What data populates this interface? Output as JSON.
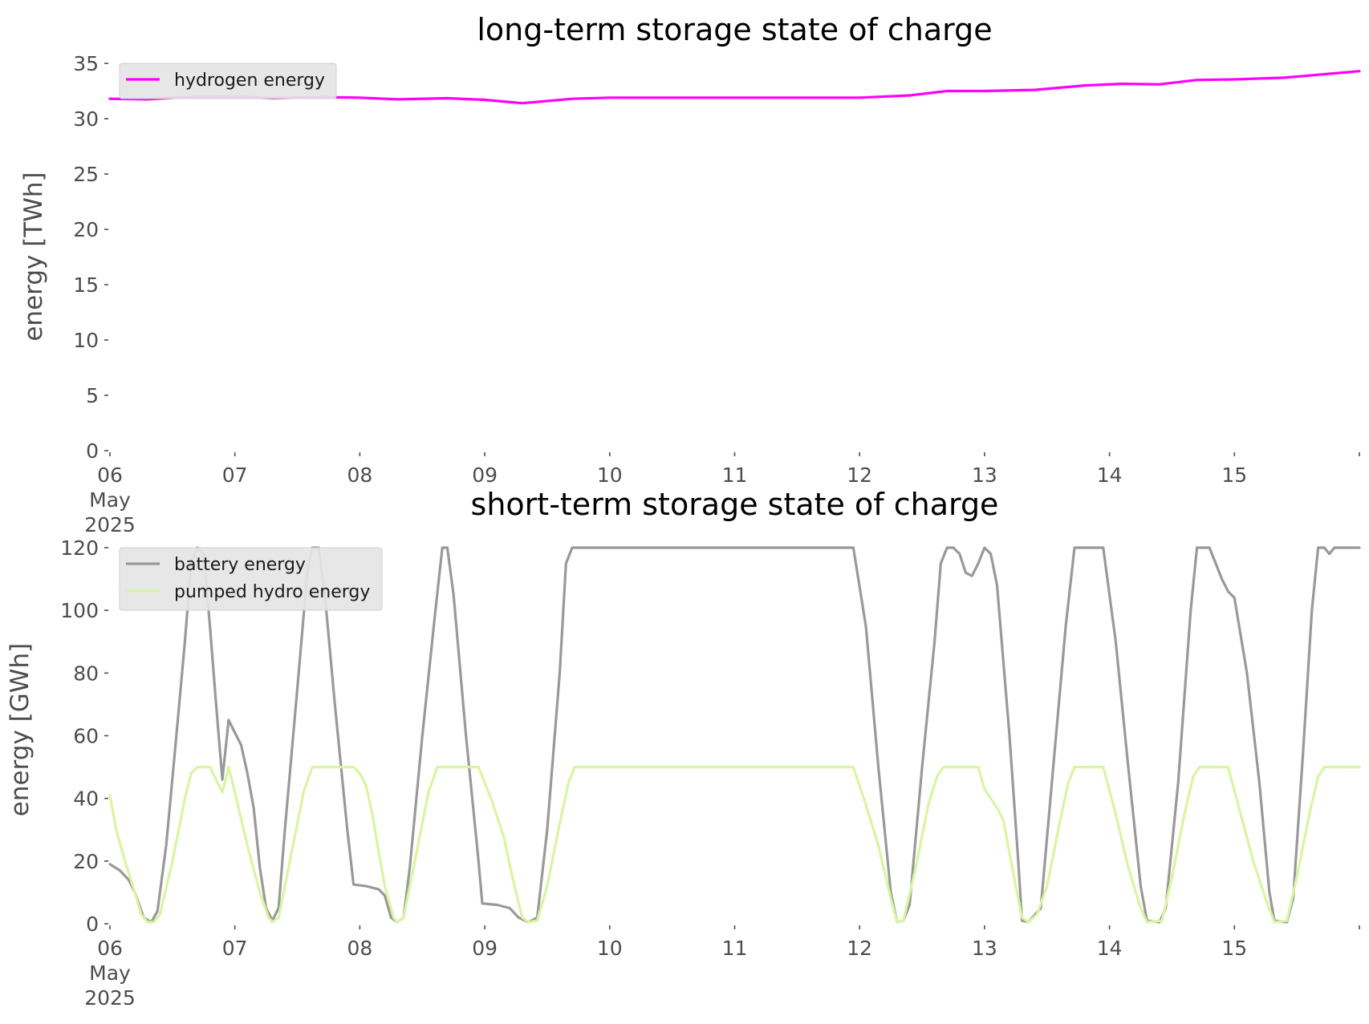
{
  "chart_data": [
    {
      "type": "line",
      "title": "long-term storage state of charge",
      "ylabel": "energy [TWh]",
      "xlabel": "",
      "ylim": [
        0,
        35
      ],
      "yticks": [
        0,
        5,
        10,
        15,
        20,
        25,
        30,
        35
      ],
      "xlim": [
        0,
        10
      ],
      "xticks": [
        {
          "v": 0,
          "lines": [
            "06",
            "May",
            "2025"
          ]
        },
        {
          "v": 1,
          "lines": [
            "07"
          ]
        },
        {
          "v": 2,
          "lines": [
            "08"
          ]
        },
        {
          "v": 3,
          "lines": [
            "09"
          ]
        },
        {
          "v": 4,
          "lines": [
            "10"
          ]
        },
        {
          "v": 5,
          "lines": [
            "11"
          ]
        },
        {
          "v": 6,
          "lines": [
            "12"
          ]
        },
        {
          "v": 7,
          "lines": [
            "13"
          ]
        },
        {
          "v": 8,
          "lines": [
            "14"
          ]
        },
        {
          "v": 9,
          "lines": [
            "15"
          ]
        }
      ],
      "grid": false,
      "legend": "upper left",
      "series": [
        {
          "name": "hydrogen energy",
          "color": "#ff00ff",
          "points": [
            [
              0,
              31.8
            ],
            [
              0.3,
              31.75
            ],
            [
              0.6,
              31.95
            ],
            [
              1,
              32.0
            ],
            [
              1.3,
              31.85
            ],
            [
              1.7,
              31.95
            ],
            [
              2,
              31.9
            ],
            [
              2.3,
              31.75
            ],
            [
              2.7,
              31.85
            ],
            [
              3,
              31.7
            ],
            [
              3.3,
              31.4
            ],
            [
              3.7,
              31.8
            ],
            [
              4,
              31.9
            ],
            [
              5,
              31.9
            ],
            [
              6,
              31.9
            ],
            [
              6.4,
              32.1
            ],
            [
              6.7,
              32.5
            ],
            [
              7,
              32.5
            ],
            [
              7.4,
              32.6
            ],
            [
              7.8,
              33.0
            ],
            [
              8.1,
              33.15
            ],
            [
              8.4,
              33.1
            ],
            [
              8.7,
              33.5
            ],
            [
              9,
              33.55
            ],
            [
              9.4,
              33.7
            ],
            [
              9.7,
              34.0
            ],
            [
              10,
              34.3
            ]
          ]
        }
      ]
    },
    {
      "type": "line",
      "title": "short-term storage state of charge",
      "ylabel": "energy [GWh]",
      "xlabel": "",
      "ylim": [
        0,
        120
      ],
      "yticks": [
        0,
        20,
        40,
        60,
        80,
        100,
        120
      ],
      "xlim": [
        0,
        10
      ],
      "xticks": [
        {
          "v": 0,
          "lines": [
            "06",
            "May",
            "2025"
          ]
        },
        {
          "v": 1,
          "lines": [
            "07"
          ]
        },
        {
          "v": 2,
          "lines": [
            "08"
          ]
        },
        {
          "v": 3,
          "lines": [
            "09"
          ]
        },
        {
          "v": 4,
          "lines": [
            "10"
          ]
        },
        {
          "v": 5,
          "lines": [
            "11"
          ]
        },
        {
          "v": 6,
          "lines": [
            "12"
          ]
        },
        {
          "v": 7,
          "lines": [
            "13"
          ]
        },
        {
          "v": 8,
          "lines": [
            "14"
          ]
        },
        {
          "v": 9,
          "lines": [
            "15"
          ]
        }
      ],
      "grid": false,
      "legend": "upper left",
      "series": [
        {
          "name": "battery energy",
          "color": "#999999",
          "points": [
            [
              0,
              19
            ],
            [
              0.08,
              17
            ],
            [
              0.15,
              14
            ],
            [
              0.2,
              10
            ],
            [
              0.27,
              2
            ],
            [
              0.33,
              0.5
            ],
            [
              0.38,
              4
            ],
            [
              0.45,
              25
            ],
            [
              0.52,
              55
            ],
            [
              0.6,
              90
            ],
            [
              0.65,
              115
            ],
            [
              0.7,
              120
            ],
            [
              0.75,
              118
            ],
            [
              0.8,
              95
            ],
            [
              0.85,
              70
            ],
            [
              0.9,
              46
            ],
            [
              0.95,
              65
            ],
            [
              1.0,
              61
            ],
            [
              1.05,
              57
            ],
            [
              1.1,
              48
            ],
            [
              1.15,
              37
            ],
            [
              1.2,
              18
            ],
            [
              1.25,
              5
            ],
            [
              1.3,
              1
            ],
            [
              1.35,
              5
            ],
            [
              1.4,
              30
            ],
            [
              1.5,
              75
            ],
            [
              1.58,
              112
            ],
            [
              1.62,
              120
            ],
            [
              1.67,
              120
            ],
            [
              1.72,
              105
            ],
            [
              1.8,
              70
            ],
            [
              1.9,
              30
            ],
            [
              1.95,
              12.5
            ],
            [
              2.05,
              12
            ],
            [
              2.15,
              11
            ],
            [
              2.2,
              9
            ],
            [
              2.25,
              2
            ],
            [
              2.3,
              0.5
            ],
            [
              2.35,
              2
            ],
            [
              2.4,
              18
            ],
            [
              2.5,
              60
            ],
            [
              2.6,
              98
            ],
            [
              2.66,
              120
            ],
            [
              2.7,
              120
            ],
            [
              2.75,
              105
            ],
            [
              2.85,
              60
            ],
            [
              2.95,
              20
            ],
            [
              2.98,
              6.5
            ],
            [
              3.1,
              6
            ],
            [
              3.2,
              5
            ],
            [
              3.27,
              2
            ],
            [
              3.35,
              0.5
            ],
            [
              3.42,
              2
            ],
            [
              3.5,
              30
            ],
            [
              3.6,
              80
            ],
            [
              3.65,
              115
            ],
            [
              3.7,
              120
            ],
            [
              5.95,
              120
            ],
            [
              6.05,
              95
            ],
            [
              6.15,
              50
            ],
            [
              6.25,
              10
            ],
            [
              6.3,
              0.5
            ],
            [
              6.35,
              1
            ],
            [
              6.4,
              6
            ],
            [
              6.5,
              50
            ],
            [
              6.6,
              90
            ],
            [
              6.65,
              115
            ],
            [
              6.7,
              120
            ],
            [
              6.75,
              120
            ],
            [
              6.8,
              118
            ],
            [
              6.85,
              112
            ],
            [
              6.9,
              111
            ],
            [
              6.95,
              115
            ],
            [
              7.0,
              120
            ],
            [
              7.05,
              118
            ],
            [
              7.1,
              108
            ],
            [
              7.2,
              60
            ],
            [
              7.27,
              20
            ],
            [
              7.3,
              1
            ],
            [
              7.35,
              0.5
            ],
            [
              7.45,
              5
            ],
            [
              7.55,
              50
            ],
            [
              7.65,
              95
            ],
            [
              7.72,
              120
            ],
            [
              7.95,
              120
            ],
            [
              8.05,
              90
            ],
            [
              8.15,
              50
            ],
            [
              8.25,
              12
            ],
            [
              8.3,
              1
            ],
            [
              8.4,
              0.5
            ],
            [
              8.45,
              5
            ],
            [
              8.55,
              45
            ],
            [
              8.65,
              100
            ],
            [
              8.7,
              120
            ],
            [
              8.8,
              120
            ],
            [
              8.85,
              115
            ],
            [
              8.9,
              110
            ],
            [
              8.95,
              106
            ],
            [
              9.0,
              104
            ],
            [
              9.1,
              80
            ],
            [
              9.2,
              45
            ],
            [
              9.28,
              10
            ],
            [
              9.32,
              1
            ],
            [
              9.42,
              0.5
            ],
            [
              9.47,
              8
            ],
            [
              9.55,
              55
            ],
            [
              9.62,
              100
            ],
            [
              9.67,
              120
            ],
            [
              9.72,
              120
            ],
            [
              9.76,
              118
            ],
            [
              9.8,
              120
            ],
            [
              10,
              120
            ]
          ]
        },
        {
          "name": "pumped hydro energy",
          "color": "#d8f5a2",
          "points": [
            [
              0,
              41
            ],
            [
              0.05,
              30
            ],
            [
              0.12,
              20
            ],
            [
              0.2,
              10
            ],
            [
              0.25,
              3
            ],
            [
              0.3,
              0.5
            ],
            [
              0.35,
              0.5
            ],
            [
              0.4,
              3
            ],
            [
              0.5,
              20
            ],
            [
              0.6,
              40
            ],
            [
              0.65,
              48
            ],
            [
              0.7,
              50
            ],
            [
              0.8,
              50
            ],
            [
              0.85,
              46
            ],
            [
              0.9,
              42
            ],
            [
              0.95,
              50
            ],
            [
              1.0,
              42
            ],
            [
              1.1,
              25
            ],
            [
              1.2,
              10
            ],
            [
              1.27,
              2
            ],
            [
              1.3,
              0.5
            ],
            [
              1.35,
              2
            ],
            [
              1.45,
              22
            ],
            [
              1.55,
              42
            ],
            [
              1.62,
              50
            ],
            [
              1.95,
              50
            ],
            [
              2.0,
              48
            ],
            [
              2.05,
              44
            ],
            [
              2.1,
              35
            ],
            [
              2.15,
              23
            ],
            [
              2.2,
              12
            ],
            [
              2.27,
              2
            ],
            [
              2.3,
              0.5
            ],
            [
              2.35,
              2
            ],
            [
              2.45,
              22
            ],
            [
              2.55,
              42
            ],
            [
              2.62,
              50
            ],
            [
              2.95,
              50
            ],
            [
              3.05,
              40
            ],
            [
              3.15,
              28
            ],
            [
              3.22,
              15
            ],
            [
              3.3,
              2
            ],
            [
              3.35,
              0.5
            ],
            [
              3.42,
              1
            ],
            [
              3.5,
              12
            ],
            [
              3.6,
              32
            ],
            [
              3.67,
              45
            ],
            [
              3.72,
              50
            ],
            [
              5.95,
              50
            ],
            [
              6.05,
              38
            ],
            [
              6.15,
              25
            ],
            [
              6.25,
              8
            ],
            [
              6.3,
              0.5
            ],
            [
              6.35,
              1
            ],
            [
              6.45,
              18
            ],
            [
              6.55,
              38
            ],
            [
              6.62,
              47
            ],
            [
              6.67,
              50
            ],
            [
              6.95,
              50
            ],
            [
              7.0,
              43
            ],
            [
              7.05,
              40
            ],
            [
              7.1,
              37
            ],
            [
              7.15,
              33
            ],
            [
              7.25,
              12
            ],
            [
              7.3,
              2
            ],
            [
              7.35,
              0.5
            ],
            [
              7.42,
              3
            ],
            [
              7.5,
              12
            ],
            [
              7.6,
              32
            ],
            [
              7.67,
              45
            ],
            [
              7.72,
              50
            ],
            [
              7.95,
              50
            ],
            [
              8.05,
              35
            ],
            [
              8.15,
              18
            ],
            [
              8.25,
              5
            ],
            [
              8.3,
              0.5
            ],
            [
              8.42,
              1
            ],
            [
              8.5,
              15
            ],
            [
              8.6,
              35
            ],
            [
              8.67,
              47
            ],
            [
              8.72,
              50
            ],
            [
              8.95,
              50
            ],
            [
              9.05,
              35
            ],
            [
              9.15,
              20
            ],
            [
              9.25,
              8
            ],
            [
              9.32,
              0.5
            ],
            [
              9.42,
              1
            ],
            [
              9.5,
              15
            ],
            [
              9.6,
              35
            ],
            [
              9.67,
              47
            ],
            [
              9.72,
              50
            ],
            [
              10,
              50
            ]
          ]
        }
      ]
    }
  ]
}
